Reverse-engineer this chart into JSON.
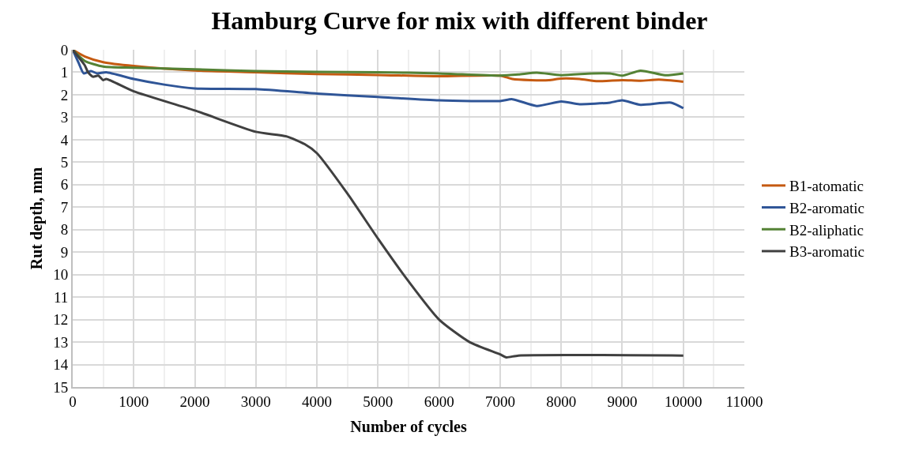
{
  "chart_data": {
    "type": "line",
    "title": "Hamburg Curve for mix with different binder",
    "xlabel": "Number of cycles",
    "ylabel": "Rut depth, mm",
    "xlim": [
      0,
      11000
    ],
    "xticks": [
      0,
      1000,
      2000,
      3000,
      4000,
      5000,
      6000,
      7000,
      8000,
      9000,
      10000,
      11000
    ],
    "ylim": [
      15,
      0
    ],
    "yticks": [
      0,
      1,
      2,
      3,
      4,
      5,
      6,
      7,
      8,
      9,
      10,
      11,
      12,
      13,
      14,
      15
    ],
    "grid": true,
    "legend": "right",
    "marker": "none",
    "line_style": "solid",
    "series": [
      {
        "name": "B1-atomatic",
        "color": "#c55a11",
        "x": [
          0,
          200,
          500,
          1000,
          2000,
          3000,
          4000,
          5000,
          6000,
          7000,
          7200,
          7500,
          7800,
          8000,
          8300,
          8600,
          9000,
          9300,
          9600,
          10000
        ],
        "values": [
          0,
          0.3,
          0.55,
          0.72,
          0.92,
          1.0,
          1.08,
          1.12,
          1.18,
          1.15,
          1.3,
          1.35,
          1.35,
          1.28,
          1.3,
          1.4,
          1.35,
          1.38,
          1.33,
          1.42
        ]
      },
      {
        "name": "B2-aromatic",
        "color": "#2f5597",
        "x": [
          0,
          100,
          180,
          300,
          400,
          550,
          1000,
          1500,
          2000,
          3000,
          4000,
          5000,
          6000,
          7000,
          7200,
          7600,
          8000,
          8300,
          8800,
          9000,
          9300,
          9800,
          10000
        ],
        "values": [
          0,
          0.6,
          1.05,
          0.95,
          1.05,
          1.0,
          1.3,
          1.55,
          1.72,
          1.75,
          1.95,
          2.1,
          2.25,
          2.28,
          2.2,
          2.5,
          2.3,
          2.42,
          2.35,
          2.25,
          2.45,
          2.35,
          2.6
        ]
      },
      {
        "name": "B2-aliphatic",
        "color": "#548235",
        "x": [
          0,
          200,
          500,
          1000,
          2000,
          3000,
          4000,
          5000,
          6000,
          7000,
          7300,
          7600,
          8000,
          8500,
          8800,
          9000,
          9300,
          9700,
          10000
        ],
        "values": [
          0,
          0.5,
          0.75,
          0.8,
          0.87,
          0.95,
          0.98,
          1.0,
          1.05,
          1.15,
          1.1,
          1.02,
          1.13,
          1.05,
          1.05,
          1.15,
          0.93,
          1.13,
          1.05
        ]
      },
      {
        "name": "B3-aromatic",
        "color": "#404040",
        "x": [
          0,
          200,
          250,
          330,
          420,
          500,
          550,
          1000,
          2000,
          3000,
          3500,
          3800,
          4000,
          4500,
          5000,
          5500,
          6000,
          6500,
          7000,
          7100,
          7300,
          10000
        ],
        "values": [
          0,
          0.7,
          1.0,
          1.2,
          1.15,
          1.35,
          1.3,
          1.85,
          2.7,
          3.65,
          3.85,
          4.2,
          4.6,
          6.4,
          8.4,
          10.3,
          12.0,
          13.0,
          13.55,
          13.68,
          13.6,
          13.6
        ]
      }
    ]
  }
}
